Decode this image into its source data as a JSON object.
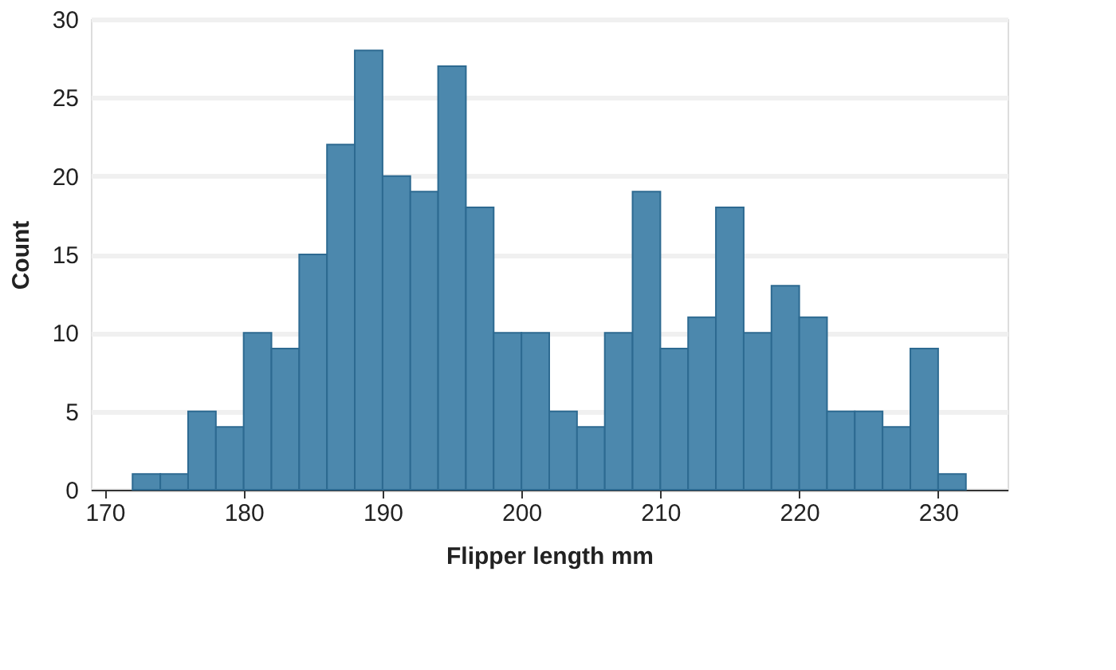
{
  "chart_data": {
    "type": "histogram",
    "xlabel": "Flipper length mm",
    "ylabel": "Count",
    "bins": [
      172,
      174,
      176,
      178,
      180,
      182,
      184,
      186,
      188,
      190,
      192,
      194,
      196,
      198,
      200,
      202,
      204,
      206,
      208,
      210,
      212,
      214,
      216,
      218,
      220,
      222,
      224,
      226,
      228,
      230,
      232
    ],
    "values": [
      1,
      1,
      5,
      4,
      10,
      9,
      15,
      22,
      28,
      20,
      19,
      27,
      18,
      10,
      10,
      5,
      4,
      10,
      19,
      9,
      11,
      18,
      10,
      13,
      11,
      5,
      5,
      4,
      9,
      1
    ],
    "color": "#4c88ad",
    "xlim": [
      169,
      235
    ],
    "xticks": [
      170,
      180,
      190,
      200,
      210,
      220,
      230
    ],
    "ylim": [
      0,
      30
    ],
    "yticks": [
      0,
      5,
      10,
      15,
      20,
      25,
      30
    ],
    "grid": "y"
  }
}
